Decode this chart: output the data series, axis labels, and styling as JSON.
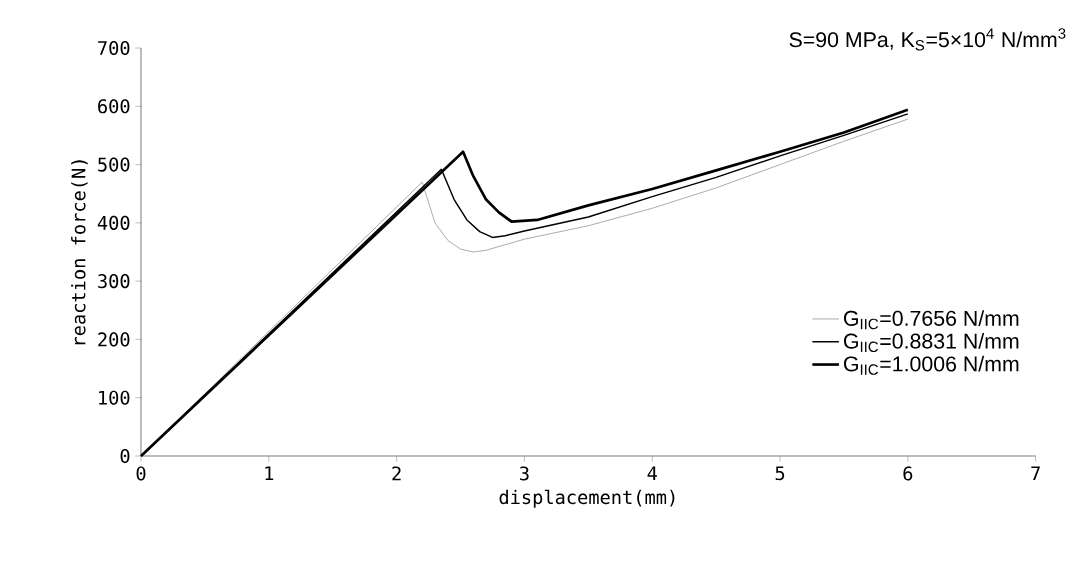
{
  "chart_data": {
    "type": "line",
    "xlabel": "displacement(mm)",
    "ylabel": "reaction force(N)",
    "annotations": [
      "S=90 MPa, K$_{S}$=5×10$^{4}$ N/mm$^{3}$"
    ],
    "xlim": [
      0,
      7
    ],
    "ylim": [
      0,
      700
    ],
    "xticks": [
      0,
      1,
      2,
      3,
      4,
      5,
      6,
      7
    ],
    "yticks": [
      0,
      100,
      200,
      300,
      400,
      500,
      600,
      700
    ],
    "grid": false,
    "legend": "right",
    "marker": "none",
    "line_style": "solid",
    "series": [
      {
        "name": "G$_{IIC}$=0.7656 N/mm",
        "color": "#808080",
        "x": [
          0,
          2.2,
          2.3,
          2.4,
          2.5,
          2.6,
          2.7,
          3,
          3.5,
          4,
          4.5,
          5,
          5.5,
          6
        ],
        "values": [
          0,
          470,
          400,
          370,
          355,
          350,
          353,
          372,
          395,
          425,
          460,
          500,
          540,
          578
        ]
      },
      {
        "name": "G$_{IIC}$=0.8831 N/mm",
        "color": "#000000",
        "x": [
          0,
          2.35,
          2.45,
          2.55,
          2.65,
          2.75,
          2.85,
          3,
          3.5,
          4,
          4.5,
          5,
          5.5,
          6
        ],
        "values": [
          0,
          492,
          440,
          405,
          385,
          375,
          378,
          386,
          410,
          445,
          478,
          515,
          550,
          587
        ]
      },
      {
        "name": "G$_{IIC}$=1.0006 N/mm",
        "color": "#000000",
        "x": [
          0,
          2.52,
          2.6,
          2.7,
          2.8,
          2.9,
          3.1,
          3.5,
          4,
          4.5,
          5,
          5.5,
          6
        ],
        "values": [
          0,
          522,
          480,
          440,
          418,
          402,
          405,
          430,
          458,
          490,
          522,
          555,
          594
        ]
      }
    ]
  }
}
